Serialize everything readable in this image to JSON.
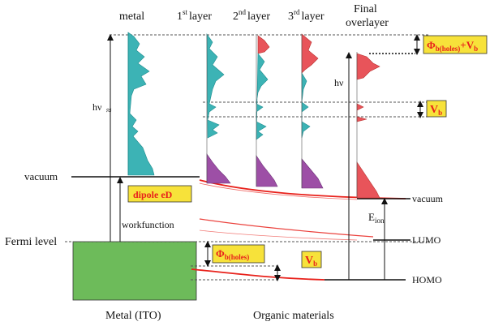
{
  "colors": {
    "metal_spectrum": "#3cb3b5",
    "layer_spectrum_teal": "#3cb3b5",
    "layer_spectrum_purple": "#9d4fa6",
    "layer_spectrum_red": "#e8545a",
    "metal_block": "#6dbb5a",
    "highlight_box": "#f7e23a",
    "highlight_text": "#e8211b",
    "band_line": "#e8211b"
  },
  "columns": {
    "metal": "metal",
    "layer1_main": "1",
    "layer1_sup": "st",
    "layer1_tail": "layer",
    "layer2_main": "2",
    "layer2_sup": "nd",
    "layer2_tail": "layer",
    "layer3_main": "3",
    "layer3_sup": "rd",
    "layer3_tail": "layer",
    "final_line1": "Final",
    "final_line2": "overlayer"
  },
  "left_labels": {
    "hv": "hν",
    "vacuum": "vacuum",
    "workfunction": "workfunction",
    "fermi": "Fermi level",
    "metal_ito": "Metal (ITO)"
  },
  "center_labels": {
    "organic": "Organic materials",
    "hv_final": "hν",
    "e_ion_main": "E",
    "e_ion_sub": "ion"
  },
  "right_labels": {
    "vacuum": "vacuum",
    "lumo": "LUMO",
    "homo": "HOMO"
  },
  "boxes": {
    "phi_plus_vb_main": "Φ",
    "phi_plus_vb_sub": "b(holes)",
    "phi_plus_vb_tail": "+V",
    "phi_plus_vb_tail_sub": "b",
    "vb_right_main": "V",
    "vb_right_sub": "b",
    "dipole": "dipole eD",
    "phi_holes_main": "Φ",
    "phi_holes_sub": "b(holes)",
    "vb_low_main": "V",
    "vb_low_sub": "b"
  }
}
